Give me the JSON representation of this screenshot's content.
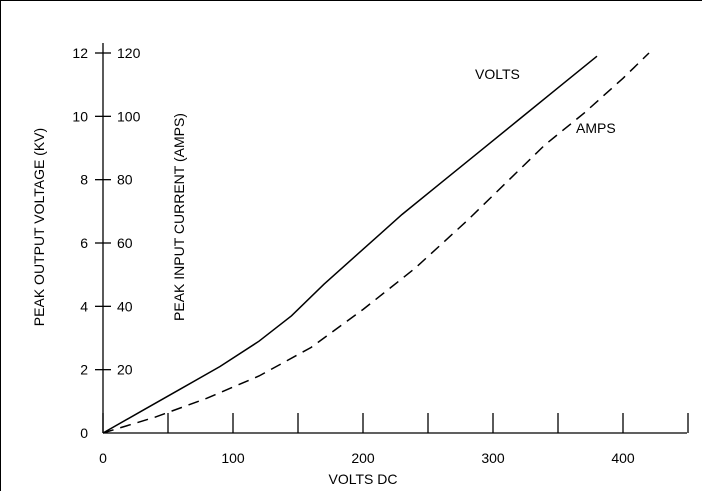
{
  "chart_data": {
    "type": "line",
    "xlabel": "VOLTS DC",
    "ylabel": "PEAK OUTPUT VOLTAGE (KV)",
    "y2label": "PEAK INPUT CURRENT (AMPS)",
    "xlim": [
      0,
      450
    ],
    "ylim": [
      0,
      12
    ],
    "y2lim": [
      0,
      120
    ],
    "x_ticks": [
      0,
      50,
      100,
      150,
      200,
      250,
      300,
      350,
      400,
      450
    ],
    "x_tick_labels": [
      "0",
      "100",
      "200",
      "300",
      "400"
    ],
    "x_tick_label_values": [
      0,
      100,
      200,
      300,
      400
    ],
    "y_ticks": [
      0,
      2,
      4,
      6,
      8,
      10,
      12
    ],
    "y_tick_labels": [
      "0",
      "2",
      "4",
      "6",
      "8",
      "10",
      "12"
    ],
    "y2_ticks": [
      20,
      40,
      60,
      80,
      100,
      120
    ],
    "y2_tick_labels": [
      "20",
      "40",
      "60",
      "80",
      "100",
      "120"
    ],
    "grid": false,
    "series": [
      {
        "name": "VOLTS",
        "style": "solid",
        "axis": "left",
        "x": [
          0,
          30,
          60,
          90,
          120,
          145,
          170,
          200,
          230,
          260,
          290,
          320,
          350,
          380
        ],
        "y": [
          0,
          0.7,
          1.4,
          2.1,
          2.9,
          3.7,
          4.7,
          5.8,
          6.9,
          7.9,
          8.9,
          9.9,
          10.9,
          11.9
        ]
      },
      {
        "name": "AMPS",
        "style": "dashed",
        "axis": "right",
        "x": [
          0,
          40,
          80,
          120,
          160,
          200,
          240,
          280,
          310,
          340,
          370,
          400,
          420
        ],
        "y": [
          0,
          5,
          11,
          18,
          27,
          39,
          52,
          67,
          79,
          91,
          101,
          112,
          120
        ]
      }
    ]
  }
}
